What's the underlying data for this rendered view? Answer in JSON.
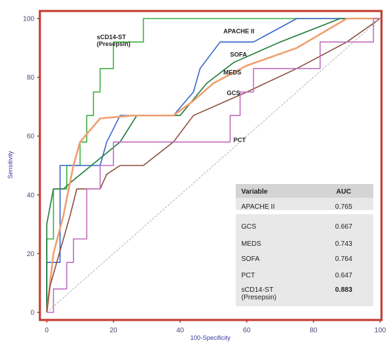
{
  "chart_data": {
    "type": "line",
    "xlabel": "100-Specificity",
    "ylabel": "Sensitivity",
    "xlim": [
      0,
      100
    ],
    "ylim": [
      0,
      100
    ],
    "xticks": [
      "0",
      "20",
      "40",
      "60",
      "80",
      "100"
    ],
    "yticks": [
      "0",
      "20",
      "40",
      "60",
      "80",
      "100"
    ],
    "grid": false,
    "series": [
      {
        "name": "sCD14-ST (Presepsin)",
        "color": "#3cb043",
        "label_lines": [
          "sCD14-ST",
          "(Presepsin)"
        ],
        "label_at": [
          15,
          93
        ],
        "points": [
          [
            0,
            0
          ],
          [
            0,
            25
          ],
          [
            2,
            25
          ],
          [
            2,
            42
          ],
          [
            6,
            42
          ],
          [
            6,
            50
          ],
          [
            10,
            50
          ],
          [
            10,
            58
          ],
          [
            12,
            58
          ],
          [
            12,
            67
          ],
          [
            14,
            67
          ],
          [
            14,
            75
          ],
          [
            16,
            75
          ],
          [
            16,
            83
          ],
          [
            20,
            83
          ],
          [
            20,
            92
          ],
          [
            29,
            92
          ],
          [
            29,
            100
          ],
          [
            100,
            100
          ]
        ]
      },
      {
        "name": "APACHE II",
        "color": "#3a66cc",
        "label_lines": [
          "APACHE II"
        ],
        "label_at": [
          53,
          95
        ],
        "points": [
          [
            0,
            0
          ],
          [
            0,
            17
          ],
          [
            4,
            17
          ],
          [
            4,
            50
          ],
          [
            16,
            50
          ],
          [
            18,
            58
          ],
          [
            22,
            67
          ],
          [
            35,
            67
          ],
          [
            38,
            67
          ],
          [
            44,
            75
          ],
          [
            46,
            83
          ],
          [
            52,
            92
          ],
          [
            62,
            92
          ],
          [
            75,
            100
          ],
          [
            100,
            100
          ]
        ]
      },
      {
        "name": "SOFA",
        "color": "#1f7a3a",
        "label_lines": [
          "SOFA"
        ],
        "label_at": [
          55,
          87
        ],
        "points": [
          [
            0,
            0
          ],
          [
            0,
            30
          ],
          [
            2,
            42
          ],
          [
            5,
            42
          ],
          [
            8,
            45
          ],
          [
            22,
            58
          ],
          [
            27,
            67
          ],
          [
            40,
            67
          ],
          [
            48,
            78
          ],
          [
            56,
            85
          ],
          [
            70,
            92
          ],
          [
            88,
            100
          ],
          [
            100,
            100
          ]
        ]
      },
      {
        "name": "MEDS",
        "color": "#f0a070",
        "label_lines": [
          "MEDS"
        ],
        "label_at": [
          53,
          81
        ],
        "points": [
          [
            0,
            0
          ],
          [
            2,
            20
          ],
          [
            5,
            33
          ],
          [
            8,
            50
          ],
          [
            10,
            58
          ],
          [
            16,
            66
          ],
          [
            26,
            67
          ],
          [
            38,
            67
          ],
          [
            44,
            72
          ],
          [
            50,
            78
          ],
          [
            60,
            84
          ],
          [
            75,
            90
          ],
          [
            90,
            100
          ],
          [
            100,
            100
          ]
        ]
      },
      {
        "name": "GCS",
        "color": "#8a5040",
        "label_lines": [
          "GCS"
        ],
        "label_at": [
          54,
          74
        ],
        "points": [
          [
            0,
            0
          ],
          [
            1,
            9
          ],
          [
            3,
            17
          ],
          [
            5,
            25
          ],
          [
            7,
            33
          ],
          [
            9,
            42
          ],
          [
            16,
            42
          ],
          [
            18,
            47
          ],
          [
            22,
            50
          ],
          [
            29,
            50
          ],
          [
            38,
            58
          ],
          [
            44,
            67
          ],
          [
            60,
            75
          ],
          [
            75,
            83
          ],
          [
            90,
            92
          ],
          [
            100,
            100
          ]
        ]
      },
      {
        "name": "PCT",
        "color": "#c070c0",
        "label_lines": [
          "PCT"
        ],
        "label_at": [
          56,
          58
        ],
        "points": [
          [
            0,
            0
          ],
          [
            2,
            0
          ],
          [
            2,
            8
          ],
          [
            6,
            8
          ],
          [
            6,
            17
          ],
          [
            8,
            17
          ],
          [
            8,
            25
          ],
          [
            12,
            25
          ],
          [
            12,
            42
          ],
          [
            16,
            42
          ],
          [
            16,
            50
          ],
          [
            20,
            50
          ],
          [
            20,
            58
          ],
          [
            55,
            58
          ],
          [
            55,
            67
          ],
          [
            58,
            67
          ],
          [
            58,
            75
          ],
          [
            62,
            75
          ],
          [
            62,
            83
          ],
          [
            82,
            83
          ],
          [
            82,
            92
          ],
          [
            98,
            92
          ],
          [
            98,
            100
          ],
          [
            100,
            100
          ]
        ]
      },
      {
        "name": "reference",
        "color": "#b0b0b0",
        "dashed": true,
        "points": [
          [
            0,
            0
          ],
          [
            100,
            100
          ]
        ]
      }
    ],
    "table": {
      "headers": [
        "Variable",
        "AUC"
      ],
      "rows": [
        {
          "variable": "APACHE II",
          "auc": "0.765"
        },
        {
          "variable": "GCS",
          "auc": "0.667"
        },
        {
          "variable": "MEDS",
          "auc": "0.743"
        },
        {
          "variable": "SOFA",
          "auc": "0.764"
        },
        {
          "variable": "PCT",
          "auc": "0.647"
        },
        {
          "variable": "sCD14-ST",
          "variable2": "(Presepsin)",
          "auc": "0.883"
        }
      ]
    }
  }
}
